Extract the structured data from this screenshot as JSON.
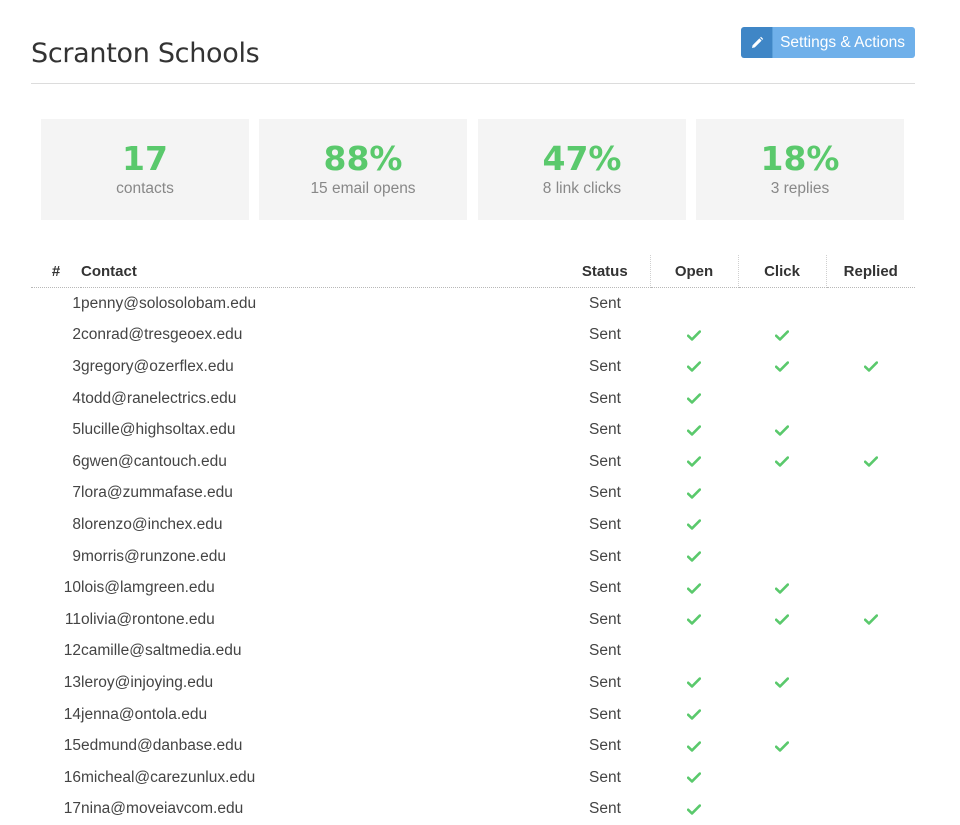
{
  "header": {
    "title": "Scranton Schools",
    "settings_button_label": "Settings & Actions",
    "settings_button_icon": "pencil-icon"
  },
  "colors": {
    "accent_green": "#5ac96c",
    "button_blue": "#6fb0ea",
    "button_icon_blue": "#3f86c6",
    "card_background": "#f4f4f4"
  },
  "stats": [
    {
      "value": "17",
      "label": "contacts"
    },
    {
      "value": "88%",
      "label": "15 email opens"
    },
    {
      "value": "47%",
      "label": "8 link clicks"
    },
    {
      "value": "18%",
      "label": "3 replies"
    }
  ],
  "table": {
    "columns": {
      "num": "#",
      "contact": "Contact",
      "status": "Status",
      "open": "Open",
      "click": "Click",
      "replied": "Replied"
    },
    "rows": [
      {
        "num": "1",
        "email": "penny@solosolobam.edu",
        "status": "Sent",
        "open": false,
        "click": false,
        "replied": false
      },
      {
        "num": "2",
        "email": "conrad@tresgeoex.edu",
        "status": "Sent",
        "open": true,
        "click": true,
        "replied": false
      },
      {
        "num": "3",
        "email": "gregory@ozerflex.edu",
        "status": "Sent",
        "open": true,
        "click": true,
        "replied": true
      },
      {
        "num": "4",
        "email": "todd@ranelectrics.edu",
        "status": "Sent",
        "open": true,
        "click": false,
        "replied": false
      },
      {
        "num": "5",
        "email": "lucille@highsoltax.edu",
        "status": "Sent",
        "open": true,
        "click": true,
        "replied": false
      },
      {
        "num": "6",
        "email": "gwen@cantouch.edu",
        "status": "Sent",
        "open": true,
        "click": true,
        "replied": true
      },
      {
        "num": "7",
        "email": "lora@zummafase.edu",
        "status": "Sent",
        "open": true,
        "click": false,
        "replied": false
      },
      {
        "num": "8",
        "email": "lorenzo@inchex.edu",
        "status": "Sent",
        "open": true,
        "click": false,
        "replied": false
      },
      {
        "num": "9",
        "email": "morris@runzone.edu",
        "status": "Sent",
        "open": true,
        "click": false,
        "replied": false
      },
      {
        "num": "10",
        "email": "lois@lamgreen.edu",
        "status": "Sent",
        "open": true,
        "click": true,
        "replied": false
      },
      {
        "num": "11",
        "email": "olivia@rontone.edu",
        "status": "Sent",
        "open": true,
        "click": true,
        "replied": true
      },
      {
        "num": "12",
        "email": "camille@saltmedia.edu",
        "status": "Sent",
        "open": false,
        "click": false,
        "replied": false
      },
      {
        "num": "13",
        "email": "leroy@injoying.edu",
        "status": "Sent",
        "open": true,
        "click": true,
        "replied": false
      },
      {
        "num": "14",
        "email": "jenna@ontola.edu",
        "status": "Sent",
        "open": true,
        "click": false,
        "replied": false
      },
      {
        "num": "15",
        "email": "edmund@danbase.edu",
        "status": "Sent",
        "open": true,
        "click": true,
        "replied": false
      },
      {
        "num": "16",
        "email": "micheal@carezunlux.edu",
        "status": "Sent",
        "open": true,
        "click": false,
        "replied": false
      },
      {
        "num": "17",
        "email": "nina@moveiavcom.edu",
        "status": "Sent",
        "open": true,
        "click": false,
        "replied": false
      }
    ]
  }
}
